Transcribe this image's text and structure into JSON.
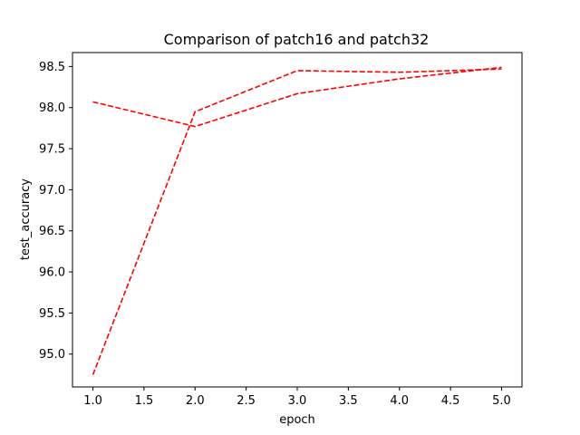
{
  "chart_data": {
    "type": "line",
    "title": "Comparison of patch16 and patch32",
    "xlabel": "epoch",
    "ylabel": "test_accuracy",
    "xlim": [
      0.8,
      5.2
    ],
    "ylim": [
      94.6,
      98.67
    ],
    "x_ticks": [
      "1.0",
      "1.5",
      "2.0",
      "2.5",
      "3.0",
      "3.5",
      "4.0",
      "4.5",
      "5.0"
    ],
    "y_ticks": [
      "95.0",
      "95.5",
      "96.0",
      "96.5",
      "97.0",
      "97.5",
      "98.0",
      "98.5"
    ],
    "grid": false,
    "legend": "none",
    "series": [
      {
        "color": "#ff0000",
        "style": "dashed",
        "x": [
          1,
          2,
          3,
          4,
          5
        ],
        "y": [
          94.75,
          97.95,
          98.45,
          98.43,
          98.47
        ]
      },
      {
        "color": "#ff0000",
        "style": "dashed",
        "x": [
          1,
          2,
          3,
          4,
          5
        ],
        "y": [
          98.07,
          97.77,
          98.17,
          98.35,
          98.49
        ]
      }
    ]
  }
}
